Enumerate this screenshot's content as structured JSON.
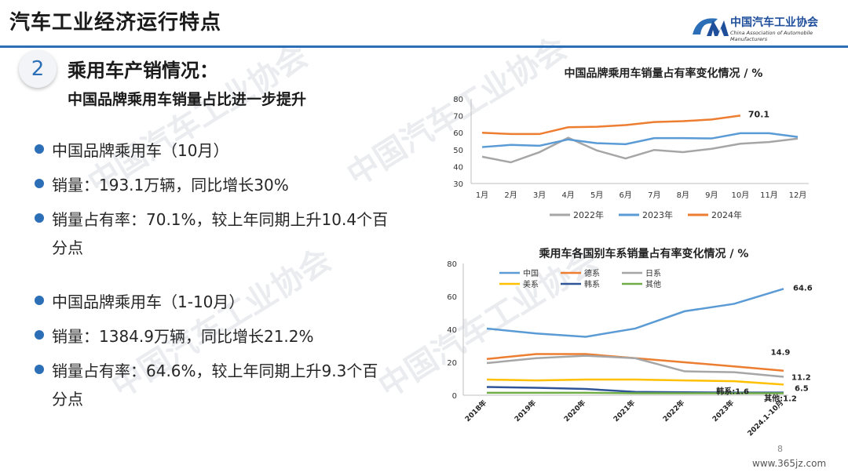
{
  "header": {
    "title": "汽车工业经济运行特点",
    "logo_name": "中国汽车工业协会",
    "logo_en": "China Association of Automobile Manufacturers"
  },
  "section": {
    "number": "2",
    "title": "乘用车产销情况：",
    "subtitle": "中国品牌乘用车销量占比进一步提升"
  },
  "bullets": [
    "中国品牌乘用车（10月）",
    "销量：193.1万辆，同比增长30%",
    "销量占有率：70.1%，较上年同期上升10.4个百",
    "分点",
    "中国品牌乘用车（1-10月）",
    "销量：1384.9万辆，同比增长21.2%",
    "销量占有率：64.6%，较上年同期上升9.3个百",
    "分点"
  ],
  "watermark": "中国汽车工业协会",
  "page_number": "8",
  "source": "www.365jz.com",
  "colors": {
    "brand": "#2d6fb7",
    "y2022": "#a6a6a6",
    "y2023": "#5b9bd5",
    "y2024": "#ed7d31"
  },
  "chart_data": [
    {
      "type": "line",
      "title": "中国品牌乘用车销量占有率变化情况 / %",
      "categories": [
        "1月",
        "2月",
        "3月",
        "4月",
        "5月",
        "6月",
        "7月",
        "8月",
        "9月",
        "10月",
        "11月",
        "12月"
      ],
      "ylim": [
        30,
        80
      ],
      "yticks": [
        30,
        40,
        50,
        60,
        70,
        80
      ],
      "grid": false,
      "legend_position": "bottom",
      "series": [
        {
          "name": "2022年",
          "color": "#a6a6a6",
          "values": [
            45.8,
            42.5,
            48.5,
            57.0,
            49.5,
            44.8,
            49.8,
            48.5,
            50.5,
            53.5,
            54.5,
            56.5
          ]
        },
        {
          "name": "2023年",
          "color": "#5b9bd5",
          "values": [
            51.5,
            52.8,
            52.3,
            56.0,
            53.8,
            53.2,
            56.8,
            56.8,
            56.6,
            59.7,
            59.7,
            57.5
          ]
        },
        {
          "name": "2024年",
          "color": "#ed7d31",
          "values": [
            60.0,
            59.2,
            59.2,
            63.2,
            63.5,
            64.5,
            66.3,
            66.8,
            67.8,
            70.1,
            null,
            null
          ]
        }
      ],
      "annotations": [
        {
          "text": "70.1",
          "series": "2024年",
          "category": "10月"
        }
      ]
    },
    {
      "type": "line",
      "title": "乘用车各国别车系销量占有率变化情况 / %",
      "categories": [
        "2018年",
        "2019年",
        "2020年",
        "2021年",
        "2022年",
        "2023年",
        "2024.1-10月"
      ],
      "ylim": [
        0,
        80
      ],
      "yticks": [
        0,
        20,
        40,
        60,
        80
      ],
      "grid": false,
      "legend_position": "top-left",
      "series": [
        {
          "name": "中国",
          "color": "#5b9bd5",
          "values": [
            40.5,
            37.5,
            35.5,
            40.5,
            51.0,
            55.5,
            64.6
          ]
        },
        {
          "name": "德系",
          "color": "#ed7d31",
          "values": [
            22.0,
            25.0,
            25.0,
            22.5,
            20.0,
            17.5,
            14.9
          ]
        },
        {
          "name": "日系",
          "color": "#a6a6a6",
          "values": [
            19.5,
            22.5,
            24.0,
            22.5,
            14.5,
            14.0,
            11.2
          ]
        },
        {
          "name": "美系",
          "color": "#ffc000",
          "values": [
            9.5,
            9.0,
            9.5,
            9.5,
            9.0,
            8.5,
            6.5
          ]
        },
        {
          "name": "韩系",
          "color": "#2f5597",
          "values": [
            5.0,
            4.5,
            3.8,
            2.0,
            1.8,
            1.6,
            1.6
          ]
        },
        {
          "name": "其他",
          "color": "#70ad47",
          "values": [
            1.5,
            1.5,
            1.5,
            1.2,
            1.2,
            1.2,
            1.2
          ]
        }
      ],
      "annotations": [
        {
          "text": "64.6",
          "series": "中国"
        },
        {
          "text": "14.9",
          "series": "德系"
        },
        {
          "text": "11.2",
          "series": "日系"
        },
        {
          "text": "6.5",
          "series": "美系"
        },
        {
          "text": "韩系:1.6",
          "series": "韩系"
        },
        {
          "text": "其他:1.2",
          "series": "其他"
        }
      ]
    }
  ]
}
